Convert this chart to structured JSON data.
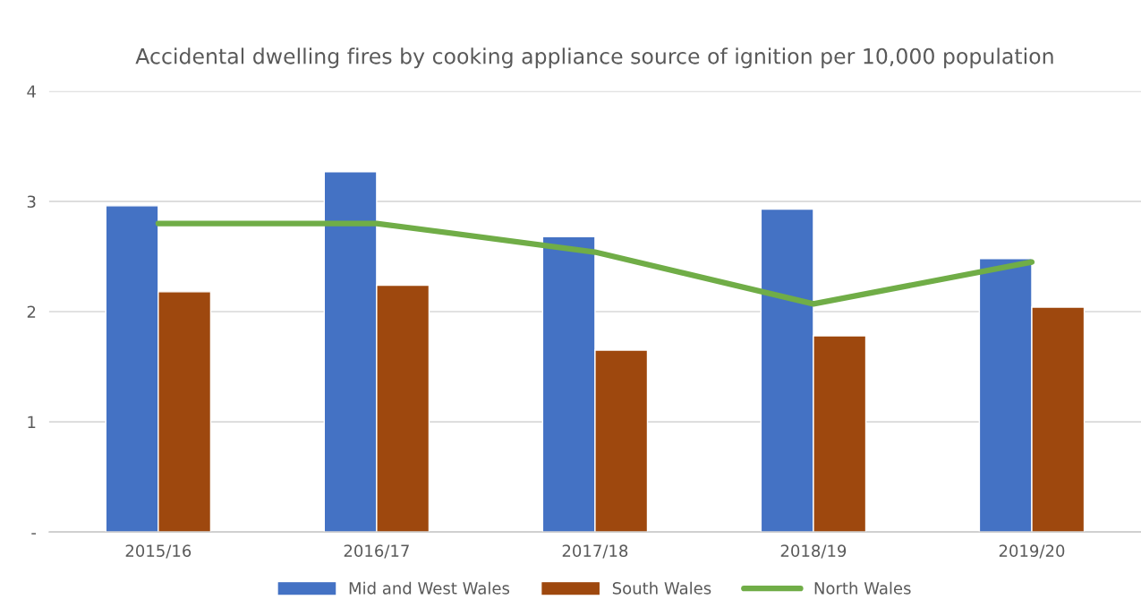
{
  "chart_data": {
    "type": "bar",
    "title": "Accidental dwelling fires by cooking appliance source of ignition per 10,000 population",
    "categories": [
      "2015/16",
      "2016/17",
      "2017/18",
      "2018/19",
      "2019/20"
    ],
    "series": [
      {
        "name": "Mid and West Wales",
        "color": "#4472c4",
        "values": [
          2.96,
          3.27,
          2.68,
          2.93,
          2.48
        ]
      },
      {
        "name": "South Wales",
        "color": "#9e480e",
        "values": [
          2.18,
          2.24,
          1.65,
          1.78,
          2.04
        ]
      },
      {
        "name": "North Wales",
        "color": "#70ad47",
        "type": "line",
        "values": [
          2.8,
          2.8,
          2.54,
          2.07,
          2.45
        ]
      }
    ],
    "ylim": [
      0,
      4
    ],
    "yticks": [
      {
        "value": 0,
        "label": "-"
      },
      1,
      2,
      3,
      4
    ],
    "grid": "y",
    "legend": "bottom",
    "marker": "none",
    "line_style": "solid"
  }
}
